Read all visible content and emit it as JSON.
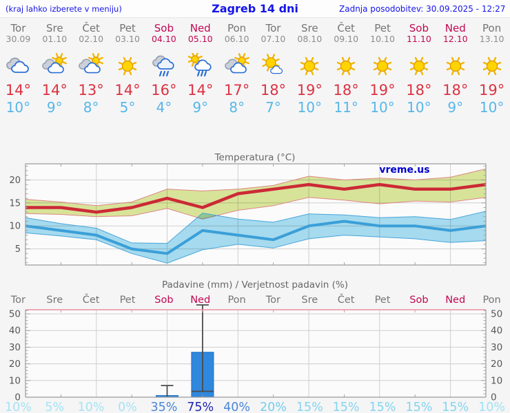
{
  "palette": {
    "page_bg": "#f5f5f6",
    "header_bg": "#fdfdfd",
    "link_blue": "#1414e8",
    "weekday_gray": "#747474",
    "date_gray": "#8c8c8c",
    "weekend_red": "#c2074e",
    "tmax_red": "#dc3240",
    "tmin_blue": "#56b6e8",
    "title_gray": "#666666",
    "axis_gray": "#555555",
    "grid": "#cfcfcf",
    "frame": "#9a9a9a",
    "plot_bg": "#fbfbfb",
    "bar_blue": "#2f88dd",
    "bar_edge": "#1f6fc8",
    "whisker": "#4a4a4a",
    "precip_top_border": "#e8909e",
    "watermark_blue": "#0000cc"
  },
  "header": {
    "hint": "(kraj lahko izberete v meniju)",
    "title": "Zagreb 14 dni",
    "updated": "Zadnja posodobitev: 30.09.2025 - 12:27"
  },
  "days": [
    {
      "name": "Tor",
      "date": "30.09",
      "weekend": false,
      "icon": "cloudy",
      "tmax": "14",
      "tmin": "10"
    },
    {
      "name": "Sre",
      "date": "01.10",
      "weekend": false,
      "icon": "partly-cloudy",
      "tmax": "14",
      "tmin": "9"
    },
    {
      "name": "Čet",
      "date": "02.10",
      "weekend": false,
      "icon": "partly-cloudy",
      "tmax": "13",
      "tmin": "8"
    },
    {
      "name": "Pet",
      "date": "03.10",
      "weekend": false,
      "icon": "sunny",
      "tmax": "14",
      "tmin": "5"
    },
    {
      "name": "Sob",
      "date": "04.10",
      "weekend": true,
      "icon": "rain",
      "tmax": "16",
      "tmin": "4"
    },
    {
      "name": "Ned",
      "date": "05.10",
      "weekend": true,
      "icon": "sun-rain",
      "tmax": "14",
      "tmin": "9"
    },
    {
      "name": "Pon",
      "date": "06.10",
      "weekend": false,
      "icon": "partly-cloudy",
      "tmax": "17",
      "tmin": "8"
    },
    {
      "name": "Tor",
      "date": "07.10",
      "weekend": false,
      "icon": "mostly-sunny",
      "tmax": "18",
      "tmin": "7"
    },
    {
      "name": "Sre",
      "date": "08.10",
      "weekend": false,
      "icon": "sunny",
      "tmax": "19",
      "tmin": "10"
    },
    {
      "name": "Čet",
      "date": "09.10",
      "weekend": false,
      "icon": "sunny",
      "tmax": "18",
      "tmin": "11"
    },
    {
      "name": "Pet",
      "date": "10.10",
      "weekend": false,
      "icon": "sunny",
      "tmax": "19",
      "tmin": "10"
    },
    {
      "name": "Sob",
      "date": "11.10",
      "weekend": true,
      "icon": "sunny",
      "tmax": "18",
      "tmin": "10"
    },
    {
      "name": "Ned",
      "date": "12.10",
      "weekend": true,
      "icon": "sunny",
      "tmax": "18",
      "tmin": "9"
    },
    {
      "name": "Pon",
      "date": "13.10",
      "weekend": false,
      "icon": "sunny",
      "tmax": "19",
      "tmin": "10"
    }
  ],
  "chart_data": [
    {
      "type": "line",
      "title": "Temperatura (°C)",
      "watermark": "vreme.us",
      "x_labels": [
        "Tor",
        "Sre",
        "Čet",
        "Pet",
        "Sob",
        "Ned",
        "Pon",
        "Tor",
        "Sre",
        "Čet",
        "Pet",
        "Sob",
        "Ned",
        "Pon"
      ],
      "ylim": [
        1.5,
        23.5
      ],
      "yticks": [
        5,
        10,
        15,
        20
      ],
      "grid": true,
      "series": [
        {
          "name": "max-temp",
          "color": "#cc2936",
          "width": 4.5,
          "values": [
            14,
            14,
            13,
            14,
            16,
            14,
            17,
            18,
            19,
            18,
            19,
            18,
            18,
            19
          ]
        },
        {
          "name": "min-temp",
          "color": "#3b9fd8",
          "width": 4,
          "values": [
            10,
            9,
            8,
            5,
            4,
            9,
            8,
            7,
            10,
            11,
            10,
            10,
            9,
            10
          ]
        }
      ],
      "bands": [
        {
          "name": "max-temp-band",
          "fill": "#dbe79c",
          "edge": "#e08585",
          "hi": [
            15.8,
            15.2,
            14.4,
            15.2,
            18.0,
            17.6,
            18.0,
            18.8,
            20.8,
            20.0,
            20.4,
            20.0,
            20.6,
            22.4
          ],
          "lo": [
            12.7,
            12.5,
            12.0,
            12.2,
            13.8,
            11.5,
            13.4,
            14.4,
            16.2,
            15.6,
            14.8,
            15.4,
            15.2,
            16.2
          ]
        },
        {
          "name": "min-temp-band",
          "fill": "#a9def2",
          "edge": "#46a5da",
          "hi": [
            11.8,
            10.5,
            9.5,
            6.3,
            6.2,
            12.8,
            11.5,
            10.8,
            12.6,
            12.4,
            11.8,
            12.0,
            11.4,
            13.2
          ],
          "lo": [
            8.5,
            7.8,
            7.0,
            4.0,
            1.9,
            4.8,
            6.0,
            5.2,
            7.2,
            8.0,
            7.6,
            7.2,
            6.4,
            6.8
          ]
        }
      ]
    },
    {
      "type": "bar",
      "title": "Padavine (mm) / Verjetnost padavin (%)",
      "categories": [
        "Tor",
        "Sre",
        "Čet",
        "Pet",
        "Sob",
        "Ned",
        "Pon",
        "Tor",
        "Sre",
        "Čet",
        "Pet",
        "Sob",
        "Ned",
        "Pon"
      ],
      "weekend": [
        false,
        false,
        false,
        false,
        true,
        true,
        false,
        false,
        false,
        false,
        false,
        true,
        true,
        false
      ],
      "values": [
        0,
        0,
        0,
        0,
        1,
        27,
        0,
        0,
        0,
        0,
        0,
        0,
        0,
        0
      ],
      "whiskers": [
        null,
        null,
        null,
        null,
        [
          0,
          7
        ],
        [
          3.5,
          55
        ],
        null,
        null,
        null,
        null,
        null,
        null,
        null,
        null
      ],
      "ylim": [
        0,
        52.5
      ],
      "yticks": [
        0,
        10,
        20,
        30,
        40,
        50
      ],
      "grid": true,
      "probabilities": [
        {
          "label": "10%",
          "color": "#a5e3f4"
        },
        {
          "label": "5%",
          "color": "#a5e3f4"
        },
        {
          "label": "10%",
          "color": "#a5e3f4"
        },
        {
          "label": "0%",
          "color": "#a5e3f4"
        },
        {
          "label": "35%",
          "color": "#4a86d8"
        },
        {
          "label": "75%",
          "color": "#2026b0"
        },
        {
          "label": "40%",
          "color": "#4a86d8"
        },
        {
          "label": "20%",
          "color": "#72cdec"
        },
        {
          "label": "15%",
          "color": "#83d5ef"
        },
        {
          "label": "15%",
          "color": "#83d5ef"
        },
        {
          "label": "15%",
          "color": "#83d5ef"
        },
        {
          "label": "15%",
          "color": "#83d5ef"
        },
        {
          "label": "15%",
          "color": "#83d5ef"
        },
        {
          "label": "10%",
          "color": "#9fe1f3"
        }
      ]
    }
  ]
}
